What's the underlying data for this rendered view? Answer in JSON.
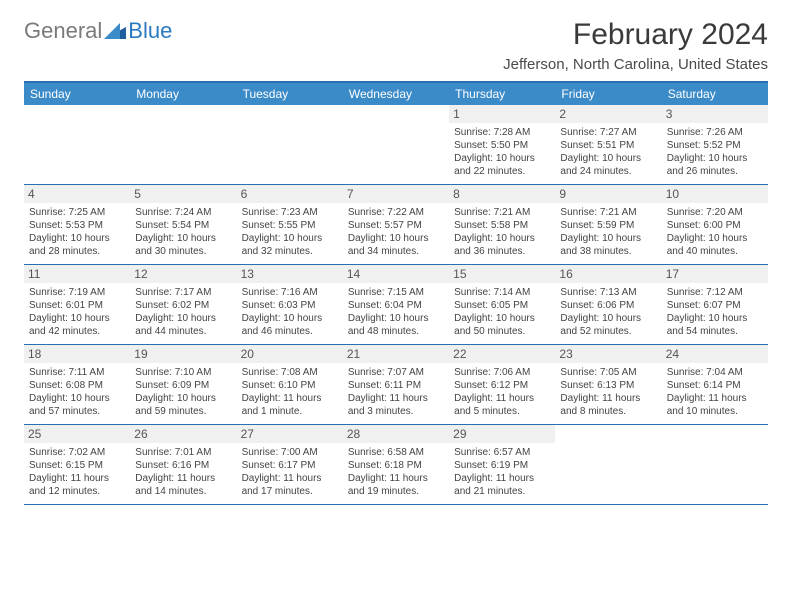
{
  "logo": {
    "text1": "General",
    "text2": "Blue"
  },
  "title": "February 2024",
  "location": "Jefferson, North Carolina, United States",
  "headers": [
    "Sunday",
    "Monday",
    "Tuesday",
    "Wednesday",
    "Thursday",
    "Friday",
    "Saturday"
  ],
  "colors": {
    "header_bg": "#3b8bc9",
    "border": "#2a6fb0",
    "daynum_bg": "#f0f0f0",
    "logo_gray": "#7a7a7a",
    "logo_blue": "#2a7ac0"
  },
  "weeks": [
    [
      {
        "n": "",
        "sr": "",
        "ss": "",
        "dl": ""
      },
      {
        "n": "",
        "sr": "",
        "ss": "",
        "dl": ""
      },
      {
        "n": "",
        "sr": "",
        "ss": "",
        "dl": ""
      },
      {
        "n": "",
        "sr": "",
        "ss": "",
        "dl": ""
      },
      {
        "n": "1",
        "sr": "Sunrise: 7:28 AM",
        "ss": "Sunset: 5:50 PM",
        "dl": "Daylight: 10 hours and 22 minutes."
      },
      {
        "n": "2",
        "sr": "Sunrise: 7:27 AM",
        "ss": "Sunset: 5:51 PM",
        "dl": "Daylight: 10 hours and 24 minutes."
      },
      {
        "n": "3",
        "sr": "Sunrise: 7:26 AM",
        "ss": "Sunset: 5:52 PM",
        "dl": "Daylight: 10 hours and 26 minutes."
      }
    ],
    [
      {
        "n": "4",
        "sr": "Sunrise: 7:25 AM",
        "ss": "Sunset: 5:53 PM",
        "dl": "Daylight: 10 hours and 28 minutes."
      },
      {
        "n": "5",
        "sr": "Sunrise: 7:24 AM",
        "ss": "Sunset: 5:54 PM",
        "dl": "Daylight: 10 hours and 30 minutes."
      },
      {
        "n": "6",
        "sr": "Sunrise: 7:23 AM",
        "ss": "Sunset: 5:55 PM",
        "dl": "Daylight: 10 hours and 32 minutes."
      },
      {
        "n": "7",
        "sr": "Sunrise: 7:22 AM",
        "ss": "Sunset: 5:57 PM",
        "dl": "Daylight: 10 hours and 34 minutes."
      },
      {
        "n": "8",
        "sr": "Sunrise: 7:21 AM",
        "ss": "Sunset: 5:58 PM",
        "dl": "Daylight: 10 hours and 36 minutes."
      },
      {
        "n": "9",
        "sr": "Sunrise: 7:21 AM",
        "ss": "Sunset: 5:59 PM",
        "dl": "Daylight: 10 hours and 38 minutes."
      },
      {
        "n": "10",
        "sr": "Sunrise: 7:20 AM",
        "ss": "Sunset: 6:00 PM",
        "dl": "Daylight: 10 hours and 40 minutes."
      }
    ],
    [
      {
        "n": "11",
        "sr": "Sunrise: 7:19 AM",
        "ss": "Sunset: 6:01 PM",
        "dl": "Daylight: 10 hours and 42 minutes."
      },
      {
        "n": "12",
        "sr": "Sunrise: 7:17 AM",
        "ss": "Sunset: 6:02 PM",
        "dl": "Daylight: 10 hours and 44 minutes."
      },
      {
        "n": "13",
        "sr": "Sunrise: 7:16 AM",
        "ss": "Sunset: 6:03 PM",
        "dl": "Daylight: 10 hours and 46 minutes."
      },
      {
        "n": "14",
        "sr": "Sunrise: 7:15 AM",
        "ss": "Sunset: 6:04 PM",
        "dl": "Daylight: 10 hours and 48 minutes."
      },
      {
        "n": "15",
        "sr": "Sunrise: 7:14 AM",
        "ss": "Sunset: 6:05 PM",
        "dl": "Daylight: 10 hours and 50 minutes."
      },
      {
        "n": "16",
        "sr": "Sunrise: 7:13 AM",
        "ss": "Sunset: 6:06 PM",
        "dl": "Daylight: 10 hours and 52 minutes."
      },
      {
        "n": "17",
        "sr": "Sunrise: 7:12 AM",
        "ss": "Sunset: 6:07 PM",
        "dl": "Daylight: 10 hours and 54 minutes."
      }
    ],
    [
      {
        "n": "18",
        "sr": "Sunrise: 7:11 AM",
        "ss": "Sunset: 6:08 PM",
        "dl": "Daylight: 10 hours and 57 minutes."
      },
      {
        "n": "19",
        "sr": "Sunrise: 7:10 AM",
        "ss": "Sunset: 6:09 PM",
        "dl": "Daylight: 10 hours and 59 minutes."
      },
      {
        "n": "20",
        "sr": "Sunrise: 7:08 AM",
        "ss": "Sunset: 6:10 PM",
        "dl": "Daylight: 11 hours and 1 minute."
      },
      {
        "n": "21",
        "sr": "Sunrise: 7:07 AM",
        "ss": "Sunset: 6:11 PM",
        "dl": "Daylight: 11 hours and 3 minutes."
      },
      {
        "n": "22",
        "sr": "Sunrise: 7:06 AM",
        "ss": "Sunset: 6:12 PM",
        "dl": "Daylight: 11 hours and 5 minutes."
      },
      {
        "n": "23",
        "sr": "Sunrise: 7:05 AM",
        "ss": "Sunset: 6:13 PM",
        "dl": "Daylight: 11 hours and 8 minutes."
      },
      {
        "n": "24",
        "sr": "Sunrise: 7:04 AM",
        "ss": "Sunset: 6:14 PM",
        "dl": "Daylight: 11 hours and 10 minutes."
      }
    ],
    [
      {
        "n": "25",
        "sr": "Sunrise: 7:02 AM",
        "ss": "Sunset: 6:15 PM",
        "dl": "Daylight: 11 hours and 12 minutes."
      },
      {
        "n": "26",
        "sr": "Sunrise: 7:01 AM",
        "ss": "Sunset: 6:16 PM",
        "dl": "Daylight: 11 hours and 14 minutes."
      },
      {
        "n": "27",
        "sr": "Sunrise: 7:00 AM",
        "ss": "Sunset: 6:17 PM",
        "dl": "Daylight: 11 hours and 17 minutes."
      },
      {
        "n": "28",
        "sr": "Sunrise: 6:58 AM",
        "ss": "Sunset: 6:18 PM",
        "dl": "Daylight: 11 hours and 19 minutes."
      },
      {
        "n": "29",
        "sr": "Sunrise: 6:57 AM",
        "ss": "Sunset: 6:19 PM",
        "dl": "Daylight: 11 hours and 21 minutes."
      },
      {
        "n": "",
        "sr": "",
        "ss": "",
        "dl": ""
      },
      {
        "n": "",
        "sr": "",
        "ss": "",
        "dl": ""
      }
    ]
  ]
}
